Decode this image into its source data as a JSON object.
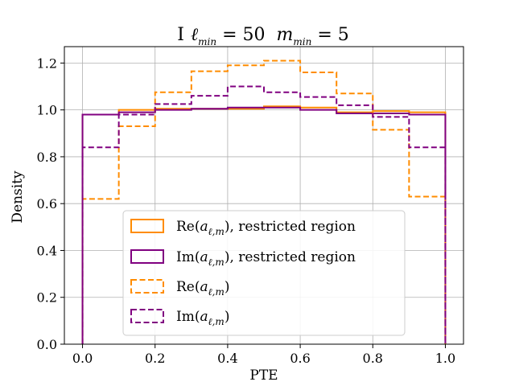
{
  "chart_data": {
    "type": "histogram-step",
    "title_main": "I",
    "title_math_1_base": "ℓ",
    "title_math_1_sub": "min",
    "title_math_1_rest": " = 50",
    "title_math_2_base": "m",
    "title_math_2_sub": "min",
    "title_math_2_rest": " = 5",
    "xlabel": "PTE",
    "ylabel": "Density",
    "xlim": [
      -0.05,
      1.05
    ],
    "ylim": [
      0.0,
      1.27
    ],
    "xticks": [
      "0.0",
      "0.2",
      "0.4",
      "0.6",
      "0.8",
      "1.0"
    ],
    "xtick_values": [
      0.0,
      0.2,
      0.4,
      0.6,
      0.8,
      1.0
    ],
    "yticks": [
      "0.0",
      "0.2",
      "0.4",
      "0.6",
      "0.8",
      "1.0",
      "1.2"
    ],
    "ytick_values": [
      0.0,
      0.2,
      0.4,
      0.6,
      0.8,
      1.0,
      1.2
    ],
    "grid": true,
    "legend_placement": "lower-center",
    "bin_edges": [
      0.0,
      0.1,
      0.2,
      0.3,
      0.4,
      0.5,
      0.6,
      0.7,
      0.8,
      0.9,
      1.0
    ],
    "series": [
      {
        "name": "Re(a_{ℓ,m}), restricted region",
        "label_prefix": "Re(",
        "label_sub": "ℓ,m",
        "label_suffix": "), restricted region",
        "color": "#ff8c00",
        "style": "solid",
        "values": [
          0.98,
          1.0,
          1.005,
          1.005,
          1.005,
          1.015,
          1.01,
          0.99,
          0.995,
          0.99
        ]
      },
      {
        "name": "Im(a_{ℓ,m}), restricted region",
        "label_prefix": "Im(",
        "label_sub": "ℓ,m",
        "label_suffix": "), restricted region",
        "color": "#800080",
        "style": "solid",
        "values": [
          0.98,
          0.99,
          1.0,
          1.005,
          1.01,
          1.01,
          1.0,
          0.985,
          0.985,
          0.98
        ]
      },
      {
        "name": "Re(a_{ℓ,m})",
        "label_prefix": "Re(",
        "label_sub": "ℓ,m",
        "label_suffix": ")",
        "color": "#ff8c00",
        "style": "dashed",
        "values": [
          0.62,
          0.93,
          1.075,
          1.165,
          1.19,
          1.21,
          1.16,
          1.07,
          0.915,
          0.63
        ]
      },
      {
        "name": "Im(a_{ℓ,m})",
        "label_prefix": "Im(",
        "label_sub": "ℓ,m",
        "label_suffix": ")",
        "color": "#800080",
        "style": "dashed",
        "values": [
          0.84,
          0.98,
          1.025,
          1.06,
          1.1,
          1.075,
          1.055,
          1.02,
          0.97,
          0.84
        ]
      }
    ]
  }
}
